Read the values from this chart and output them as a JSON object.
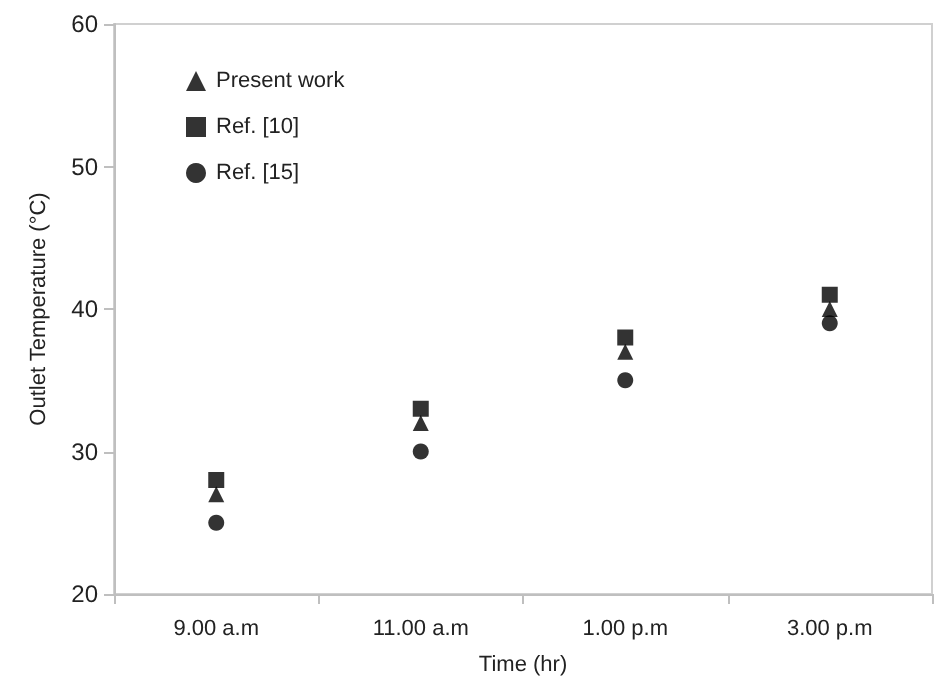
{
  "chart_data": {
    "type": "scatter",
    "xlabel": "Time (hr)",
    "ylabel": "Outlet Temperature (°C)",
    "categories": [
      "9.00 a.m",
      "11.00 a.m",
      "1.00 p.m",
      "3.00 p.m"
    ],
    "series": [
      {
        "name": "Present work",
        "color": "#000000",
        "marker": "triangle",
        "values": [
          27,
          32,
          37,
          40
        ]
      },
      {
        "name": "Ref. [10]",
        "color": "#000000",
        "marker": "square",
        "values": [
          28,
          33,
          38,
          41
        ]
      },
      {
        "name": "Ref. [15]",
        "color": "#000000",
        "marker": "circle",
        "values": [
          25,
          30,
          35,
          39
        ]
      }
    ],
    "ylim": [
      20,
      60
    ],
    "yticks": [
      20,
      30,
      40,
      50,
      60
    ],
    "grid": false,
    "legend": "top left"
  }
}
